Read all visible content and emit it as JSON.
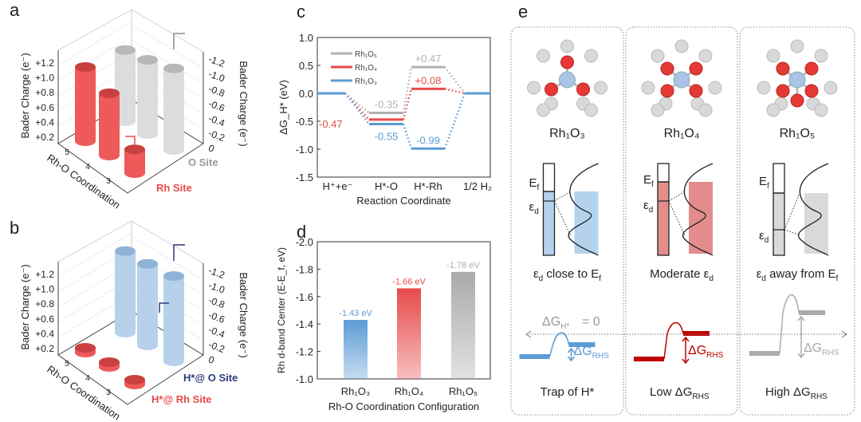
{
  "panel_labels": {
    "a": "a",
    "b": "b",
    "c": "c",
    "d": "d",
    "e": "e"
  },
  "colors": {
    "red": "#e84a4a",
    "gray": "#b8b8b8",
    "blue": "#6fa3d3",
    "navy": "#2a3a7a",
    "darkred": "#c00000"
  },
  "chart_data": [
    {
      "panel": "a",
      "type": "bar",
      "x_label": "Rh-O Coordination",
      "categories": [
        "5",
        "4",
        "3"
      ],
      "left_axis_label": "Bader Charge (e⁻)",
      "right_axis_label": "Bader Charge (e⁻)",
      "left_ticks": [
        "+0.2",
        "+0.4",
        "+0.6",
        "+0.8",
        "+1.0",
        "+1.2"
      ],
      "right_ticks": [
        "0",
        "-0.2",
        "-0.4",
        "-0.6",
        "-0.8",
        "-1.0",
        "-1.2"
      ],
      "series": [
        {
          "name": "Rh Site",
          "values": [
            1.0,
            0.84,
            0.32
          ]
        },
        {
          "name": "O Site",
          "values": [
            -0.96,
            -1.0,
            -1.1
          ]
        }
      ]
    },
    {
      "panel": "b",
      "type": "bar",
      "x_label": "Rh-O Coordination",
      "categories": [
        "5",
        "4",
        "3"
      ],
      "left_axis_label": "Bader Charge (e⁻)",
      "right_axis_label": "Bader Charge (e⁻)",
      "left_ticks": [
        "+0.2",
        "+0.4",
        "+0.6",
        "+0.8",
        "+1.0",
        "+1.2"
      ],
      "right_ticks": [
        "0",
        "-0.2",
        "-0.4",
        "-0.6",
        "-0.8",
        "-1.0",
        "-1.2"
      ],
      "series": [
        {
          "name": "H*@ Rh Site",
          "values": [
            0.05,
            0.05,
            0.05
          ]
        },
        {
          "name": "H*@ O Site",
          "values": [
            -1.1,
            -1.1,
            -1.15
          ]
        }
      ]
    },
    {
      "panel": "c",
      "type": "line",
      "ylabel": "ΔG_H* (eV)",
      "xlabel": "Reaction Coordinate",
      "categories": [
        "H⁺+e⁻",
        "H*-O",
        "H*-Rh",
        "1/2 H₂"
      ],
      "ylim": [
        -1.5,
        1.0
      ],
      "yticks": [
        "1.0",
        "0.5",
        "0.0",
        "-0.5",
        "-1.0",
        "-1.5"
      ],
      "legend": "top-left",
      "series": [
        {
          "name": "Rh₁O₅",
          "color": "#b0b0b0",
          "values": [
            0,
            -0.35,
            0.47,
            0
          ],
          "labels": [
            "",
            "-0.35",
            "+0.47",
            ""
          ]
        },
        {
          "name": "Rh₁O₄",
          "color": "#e84a4a",
          "values": [
            0,
            -0.47,
            0.08,
            0
          ],
          "labels": [
            "",
            "-0.47",
            "+0.08",
            ""
          ]
        },
        {
          "name": "Rh₁O₃",
          "color": "#5b9bd5",
          "values": [
            0,
            -0.55,
            -0.99,
            0
          ],
          "labels": [
            "",
            "-0.55",
            "-0.99",
            ""
          ]
        }
      ]
    },
    {
      "panel": "d",
      "type": "bar",
      "ylabel": "Rh d-band Center (E-E_f, eV)",
      "xlabel": "Rh-O Coordination Configuration",
      "categories": [
        "Rh₁O₃",
        "Rh₁O₄",
        "Rh₁O₅"
      ],
      "ylim": [
        -1.0,
        -2.0
      ],
      "yticks": [
        "-2.0",
        "-1.8",
        "-1.6",
        "-1.4",
        "-1.2",
        "-1.0"
      ],
      "values": [
        -1.43,
        -1.66,
        -1.78
      ],
      "data_labels": [
        "-1.43 eV",
        "-1.66 eV",
        "-1.78 eV"
      ],
      "colors": [
        "#5b9bd5",
        "#e84a4a",
        "#aaaaaa"
      ]
    }
  ],
  "panel_e": {
    "columns": [
      {
        "title": "Rh₁O₃",
        "caption": "close to E",
        "bottom": "Trap of H*",
        "color": "#5b9bd5"
      },
      {
        "title": "Rh₁O₄",
        "caption": "Moderate ε",
        "bottom": "Low ΔG",
        "color": "#c00000"
      },
      {
        "title": "Rh₁O₅",
        "caption": "away from E",
        "bottom": "High ΔG",
        "color": "#aaaaaa"
      }
    ],
    "ef_label": "E",
    "ed_label": "ε",
    "sub_f": "f",
    "sub_d": "d",
    "sub_rhs": "RHS",
    "dg_h_zero": "ΔG",
    "dg_h_sub": "H*",
    "dg_h_eq": " = 0",
    "dg_rhs": "ΔG"
  }
}
